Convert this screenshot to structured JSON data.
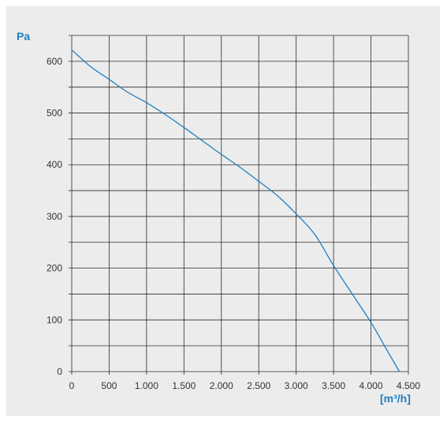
{
  "colors": {
    "background": "#ececec",
    "grid": "#2a2a2a",
    "curve": "#1f7fc1",
    "unit_label": "#1f7fc1",
    "tick_label": "#333333"
  },
  "chart_data": {
    "type": "line",
    "title": "",
    "xlabel": "[m³/h]",
    "ylabel": "Pa",
    "xlim": [
      0,
      4500
    ],
    "ylim": [
      0,
      650
    ],
    "grid": true,
    "x_ticks": [
      0,
      500,
      1000,
      1500,
      2000,
      2500,
      3000,
      3500,
      4000,
      4500
    ],
    "x_tick_labels": [
      "0",
      "500",
      "1.000",
      "1.500",
      "2.000",
      "2.500",
      "3.000",
      "3.500",
      "4.000",
      "4.500"
    ],
    "y_ticks": [
      0,
      100,
      200,
      300,
      400,
      500,
      600
    ],
    "y_tick_labels": [
      "0",
      "100",
      "200",
      "300",
      "400",
      "500",
      "600"
    ],
    "series": [
      {
        "x": [
          0,
          250,
          500,
          750,
          1000,
          1250,
          1500,
          1750,
          2000,
          2250,
          2500,
          2750,
          3000,
          3250,
          3500,
          3750,
          4000,
          4200,
          4380
        ],
        "y": [
          622,
          590,
          565,
          540,
          520,
          497,
          472,
          446,
          420,
          395,
          368,
          340,
          305,
          265,
          205,
          150,
          95,
          45,
          0
        ]
      }
    ]
  }
}
